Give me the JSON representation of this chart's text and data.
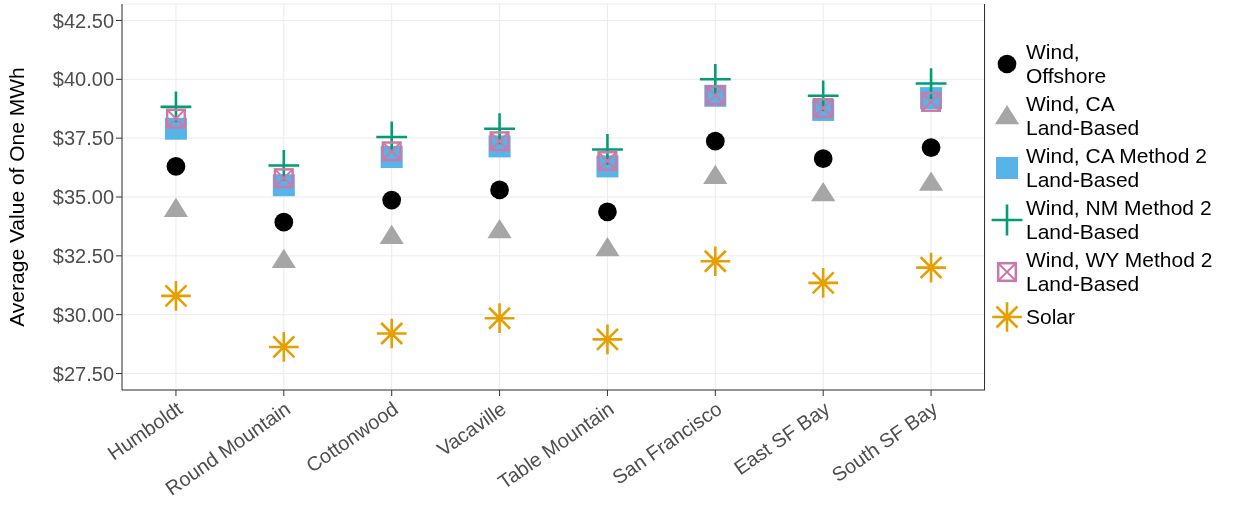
{
  "chart_data": {
    "type": "scatter",
    "ylabel": "Average Value of One MWh",
    "categories": [
      "Humboldt",
      "Round Mountain",
      "Cottonwood",
      "Vacaville",
      "Table Mountain",
      "San Francisco",
      "East SF Bay",
      "South SF Bay"
    ],
    "ylim": [
      26.8,
      43.2
    ],
    "yticks": [
      {
        "value": 27.5,
        "label": "$27.50"
      },
      {
        "value": 30,
        "label": "$30.00"
      },
      {
        "value": 32.5,
        "label": "$32.50"
      },
      {
        "value": 35,
        "label": "$35.00"
      },
      {
        "value": 37.5,
        "label": "$37.50"
      },
      {
        "value": 40,
        "label": "$40.00"
      },
      {
        "value": 42.5,
        "label": "$42.50"
      }
    ],
    "grid": true,
    "legend": "right",
    "series": [
      {
        "name": "Wind,\nOffshore",
        "color": "#000000",
        "marker": "circle",
        "values": [
          36.3,
          33.93,
          34.87,
          35.3,
          34.37,
          37.37,
          36.63,
          37.1
        ]
      },
      {
        "name": "Wind, CA\nLand-Based",
        "color": "#a6a6a6",
        "marker": "triangle",
        "values": [
          34.5,
          32.33,
          33.35,
          33.6,
          32.83,
          35.9,
          35.17,
          35.62
        ]
      },
      {
        "name": "Wind, CA Method 2\nLand-Based",
        "color": "#56b4e9",
        "marker": "square",
        "values": [
          37.9,
          35.5,
          36.7,
          37.15,
          36.3,
          39.3,
          38.7,
          39.2
        ]
      },
      {
        "name": "Wind, NM Method 2\nLand-Based",
        "color": "#009e73",
        "marker": "cross",
        "values": [
          38.83,
          36.34,
          37.55,
          37.9,
          37.02,
          40.0,
          39.3,
          39.82
        ]
      },
      {
        "name": "Wind, WY Method 2\nLand-Based",
        "color": "#cc79a7",
        "values": [
          38.33,
          35.8,
          36.94,
          37.37,
          36.53,
          39.32,
          38.78,
          39.04
        ]
      },
      {
        "name": "Solar",
        "color": "#e69f00",
        "marker": "star",
        "values": [
          30.8,
          28.63,
          29.2,
          29.85,
          28.95,
          32.27,
          31.35,
          32.0
        ]
      }
    ]
  }
}
